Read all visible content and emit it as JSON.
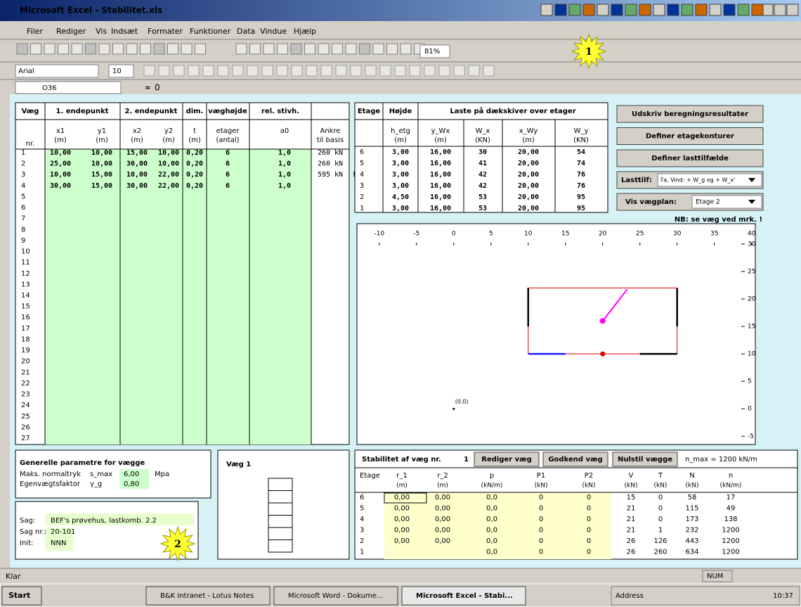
{
  "window": {
    "title": "Microsoft Excel - Stabilitet.xls"
  },
  "menu": [
    "Filer",
    "Rediger",
    "Vis",
    "Indsæt",
    "Formater",
    "Funktioner",
    "Data",
    "Vindue",
    "Hjælp"
  ],
  "toolbar": {
    "zoom": "81%",
    "font": "Arial",
    "size": "10"
  },
  "formula_bar": {
    "cell": "O36",
    "eq": "=",
    "value": "0"
  },
  "walls": {
    "headers": [
      "Væg",
      "1. endepunkt",
      "2. endepunkt",
      "dim.",
      "væghøjde",
      "rel. stivh."
    ],
    "nr": "nr.",
    "subheaders": [
      "x1",
      "y1",
      "x2",
      "y2",
      "t",
      "etager",
      "a0"
    ],
    "units": [
      "(m)",
      "(m)",
      "(m)",
      "(m)",
      "(m)",
      "(antal)"
    ],
    "anchor_header": [
      "Ankre",
      "til basis"
    ],
    "rows": [
      [
        "10,00",
        "10,00",
        "15,00",
        "10,00",
        "0,20",
        "6",
        "1,0",
        "260 kN"
      ],
      [
        "25,00",
        "10,00",
        "30,00",
        "10,00",
        "0,20",
        "6",
        "1,0",
        "260 kN"
      ],
      [
        "10,00",
        "15,00",
        "10,00",
        "22,00",
        "0,20",
        "6",
        "1,0",
        "595 kN"
      ],
      [
        "30,00",
        "15,00",
        "30,00",
        "22,00",
        "0,20",
        "6",
        "1,0"
      ]
    ],
    "row_numbers": [
      1,
      2,
      3,
      4,
      5,
      6,
      7,
      8,
      9,
      10,
      11,
      12,
      13,
      14,
      15,
      16,
      17,
      18,
      19,
      20,
      21,
      22,
      23,
      24,
      25,
      26,
      27
    ],
    "warning": "!"
  },
  "storeys": {
    "headers": [
      "Etage",
      "Højde",
      "Laste på dækskiver over etager"
    ],
    "subheaders": [
      "h_etg",
      "y_Wx",
      "W_x",
      "x_Wy",
      "W_y"
    ],
    "units": [
      "(m)",
      "(m)",
      "(KN)",
      "(m)",
      "(KN)"
    ],
    "rows": [
      [
        "6",
        "3,00",
        "16,00",
        "30",
        "20,00",
        "54"
      ],
      [
        "5",
        "3,00",
        "16,00",
        "41",
        "20,00",
        "74"
      ],
      [
        "4",
        "3,00",
        "16,00",
        "42",
        "20,00",
        "76"
      ],
      [
        "3",
        "3,00",
        "16,00",
        "42",
        "20,00",
        "76"
      ],
      [
        "2",
        "4,50",
        "16,00",
        "53",
        "20,00",
        "95"
      ],
      [
        "1",
        "3,00",
        "16,00",
        "53",
        "20,00",
        "95"
      ]
    ]
  },
  "buttons": [
    "Udskriv beregningsresultater",
    "Definer etagekonturer",
    "Definer lasttilfælde"
  ],
  "load_case": {
    "label": "Lasttilf:",
    "value": "7a, Vind: + W_g og + W_x'"
  },
  "plan": {
    "label": "Vis vægplan:",
    "value": "Etage 2"
  },
  "note": "NB: se væg ved mrk. !",
  "plot": {
    "xlim": [
      -13,
      40.5
    ],
    "ylim": [
      -6.5,
      33.7
    ],
    "xticks": [
      -10,
      -5,
      0,
      5,
      10,
      15,
      20,
      25,
      30,
      35,
      40
    ],
    "yticks": [
      30,
      25,
      20,
      15,
      10,
      5,
      0,
      -5
    ],
    "origin_label": "(0,0)"
  },
  "params": {
    "title": "Generelle parametre for vægge",
    "rows": [
      [
        "Maks. normaltryk",
        "s_max",
        "6,00",
        "Mpa"
      ],
      [
        "Egenvægtsfaktor",
        "γ_g",
        "0,80"
      ]
    ]
  },
  "case": {
    "rows": [
      [
        "Sag:",
        "BEF's prøvehus, lastkomb. 2.2"
      ],
      [
        "Sag nr.:",
        "20-101"
      ],
      [
        "Init:",
        "NNN"
      ]
    ]
  },
  "wall_view": {
    "title": "Væg 1"
  },
  "stability": {
    "title": "Stabilitet af væg nr.",
    "wall_no": "1",
    "buttons": [
      "Rediger væg",
      "Godkend væg",
      "Nulstil vægge"
    ],
    "n_max": "n_max = 1200 kN/m",
    "headers": [
      "Etage",
      "r_1",
      "r_2",
      "p",
      "P1",
      "P2",
      "V",
      "T",
      "N",
      "n"
    ],
    "units": [
      "(m)",
      "(m)",
      "(kN/m)",
      "(kN)",
      "(kN)",
      "(kN)",
      "(kN)",
      "(kN)",
      "(kN/m)"
    ],
    "rows": [
      [
        "6",
        "0,00",
        "0,00",
        "0,0",
        "0",
        "0",
        "15",
        "0",
        "58",
        "17"
      ],
      [
        "5",
        "0,00",
        "0,00",
        "0,0",
        "0",
        "0",
        "21",
        "0",
        "115",
        "49"
      ],
      [
        "4",
        "0,00",
        "0,00",
        "0,0",
        "0",
        "0",
        "21",
        "0",
        "173",
        "138"
      ],
      [
        "3",
        "0,00",
        "0,00",
        "0,0",
        "0",
        "0",
        "21",
        "1",
        "232",
        "1200"
      ],
      [
        "2",
        "0,00",
        "0,00",
        "0,0",
        "0",
        "0",
        "26",
        "126",
        "443",
        "1200"
      ],
      [
        "1",
        null,
        null,
        "0,0",
        "0",
        "0",
        "26",
        "260",
        "634",
        "1200"
      ]
    ]
  },
  "status": {
    "left": "Klar",
    "num": "NUM"
  },
  "taskbar": {
    "start": "Start",
    "items": [
      "B&K Intranet - Lotus Notes",
      "Microsoft Word - Dokume...",
      "Microsoft Excel - Stabi..."
    ],
    "address": "Address",
    "clock": "10:37"
  },
  "callouts": [
    "1",
    "2"
  ]
}
